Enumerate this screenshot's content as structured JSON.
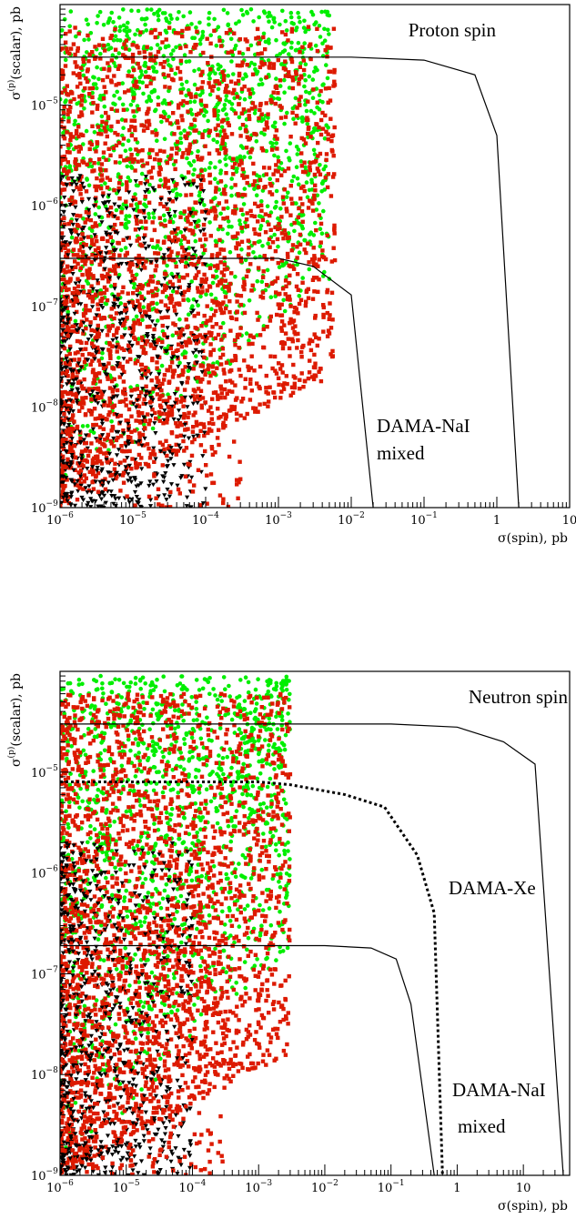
{
  "chart_data": [
    {
      "type": "scatter",
      "annotation": "Proton spin",
      "xlabel": "σ(spin), pb",
      "ylabel": {
        "base": "σ",
        "sup": "(p)",
        "rest": "(scalar), pb"
      },
      "x_scale": "log",
      "y_scale": "log",
      "xlim": [
        1e-06,
        10
      ],
      "ylim": [
        1e-09,
        0.0001
      ],
      "x_ticks": [
        {
          "value": 1e-06,
          "base": "10",
          "exp": "−6"
        },
        {
          "value": 1e-05,
          "base": "10",
          "exp": "−5"
        },
        {
          "value": 0.0001,
          "base": "10",
          "exp": "−4"
        },
        {
          "value": 0.001,
          "base": "10",
          "exp": "−3"
        },
        {
          "value": 0.01,
          "base": "10",
          "exp": "−2"
        },
        {
          "value": 0.1,
          "base": "10",
          "exp": "−1"
        },
        {
          "value": 1,
          "base": "1",
          "exp": ""
        },
        {
          "value": 10,
          "base": "10",
          "exp": ""
        }
      ],
      "y_ticks": [
        {
          "value": 1e-09,
          "base": "10",
          "exp": "−9"
        },
        {
          "value": 1e-08,
          "base": "10",
          "exp": "−8"
        },
        {
          "value": 1e-07,
          "base": "10",
          "exp": "−7"
        },
        {
          "value": 1e-06,
          "base": "10",
          "exp": "−6"
        },
        {
          "value": 1e-05,
          "base": "10",
          "exp": "−5"
        }
      ],
      "curves": [
        {
          "label_lines": [
            "DAMA-NaI",
            "mixed"
          ],
          "style": "solid",
          "points": [
            [
              1e-06,
              3e-05
            ],
            [
              0.01,
              3e-05
            ],
            [
              0.1,
              2.8e-05
            ],
            [
              0.5,
              2e-05
            ],
            [
              1,
              5e-06
            ],
            [
              2,
              1e-09
            ]
          ]
        },
        {
          "label_lines": [],
          "style": "solid",
          "points": [
            [
              1e-06,
              3e-07
            ],
            [
              0.001,
              3e-07
            ],
            [
              0.003,
              2.5e-07
            ],
            [
              0.01,
              1.3e-07
            ],
            [
              0.02,
              1e-09
            ]
          ]
        }
      ],
      "scatter_density": {
        "green_circle": {
          "x_range": [
            1e-06,
            0.005
          ],
          "y_range": [
            1e-09,
            9e-05
          ],
          "count": 1400
        },
        "red_square": {
          "x_range": [
            1e-06,
            0.006
          ],
          "y_range": [
            1e-09,
            6e-05
          ],
          "count": 2200
        },
        "black_triangle": {
          "x_range": [
            1e-06,
            0.0001
          ],
          "y_range": [
            1e-09,
            2e-06
          ],
          "count": 700
        }
      },
      "colors": {
        "green": "#00ee00",
        "red": "#dd1a00",
        "black": "#000000"
      }
    },
    {
      "type": "scatter",
      "annotation": "Neutron spin",
      "xlabel": "σ(spin), pb",
      "ylabel": {
        "base": "σ",
        "sup": "(p)",
        "rest": "(scalar), pb"
      },
      "x_scale": "log",
      "y_scale": "log",
      "xlim": [
        1e-06,
        50
      ],
      "ylim": [
        1e-09,
        0.0001
      ],
      "x_ticks": [
        {
          "value": 1e-06,
          "base": "10",
          "exp": "−6"
        },
        {
          "value": 1e-05,
          "base": "10",
          "exp": "−5"
        },
        {
          "value": 0.0001,
          "base": "10",
          "exp": "−4"
        },
        {
          "value": 0.001,
          "base": "10",
          "exp": "−3"
        },
        {
          "value": 0.01,
          "base": "10",
          "exp": "−2"
        },
        {
          "value": 0.1,
          "base": "10",
          "exp": "−1"
        },
        {
          "value": 1,
          "base": "1",
          "exp": ""
        },
        {
          "value": 10,
          "base": "10",
          "exp": ""
        }
      ],
      "y_ticks": [
        {
          "value": 1e-09,
          "base": "10",
          "exp": "−9"
        },
        {
          "value": 1e-08,
          "base": "10",
          "exp": "−8"
        },
        {
          "value": 1e-07,
          "base": "10",
          "exp": "−7"
        },
        {
          "value": 1e-06,
          "base": "10",
          "exp": "−6"
        },
        {
          "value": 1e-05,
          "base": "10",
          "exp": "−5"
        }
      ],
      "curves": [
        {
          "label_lines": [],
          "style": "solid",
          "points": [
            [
              1e-06,
              3e-05
            ],
            [
              0.1,
              3e-05
            ],
            [
              1,
              2.8e-05
            ],
            [
              5,
              2e-05
            ],
            [
              15,
              1.2e-05
            ],
            [
              40,
              1e-09
            ]
          ]
        },
        {
          "label_lines": [
            "DAMA-Xe"
          ],
          "style": "dotted",
          "points": [
            [
              1e-06,
              8e-06
            ],
            [
              0.001,
              8e-06
            ],
            [
              0.003,
              7.5e-06
            ],
            [
              0.02,
              6e-06
            ],
            [
              0.08,
              4.5e-06
            ],
            [
              0.25,
              1.5e-06
            ],
            [
              0.45,
              4e-07
            ],
            [
              0.6,
              1e-09
            ]
          ]
        },
        {
          "label_lines": [
            "DAMA-NaI",
            "mixed"
          ],
          "style": "solid",
          "points": [
            [
              1e-06,
              1.9e-07
            ],
            [
              0.001,
              1.9e-07
            ],
            [
              0.01,
              1.9e-07
            ],
            [
              0.05,
              1.8e-07
            ],
            [
              0.12,
              1.4e-07
            ],
            [
              0.2,
              5e-08
            ],
            [
              0.45,
              1e-09
            ]
          ]
        }
      ],
      "scatter_density": {
        "green_circle": {
          "x_range": [
            1e-06,
            0.003
          ],
          "y_range": [
            1e-09,
            9e-05
          ],
          "count": 1400
        },
        "red_square": {
          "x_range": [
            1e-06,
            0.003
          ],
          "y_range": [
            1e-09,
            6e-05
          ],
          "count": 2200
        },
        "black_triangle": {
          "x_range": [
            1e-06,
            0.0001
          ],
          "y_range": [
            1e-09,
            2e-06
          ],
          "count": 700
        }
      },
      "colors": {
        "green": "#00ee00",
        "red": "#dd1a00",
        "black": "#000000"
      }
    }
  ]
}
